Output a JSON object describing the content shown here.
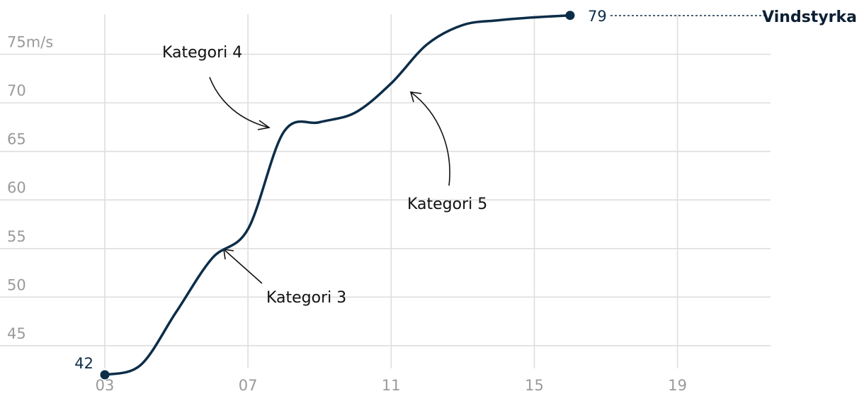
{
  "chart_data": {
    "type": "line",
    "title": "",
    "xlabel": "",
    "ylabel": "",
    "x_ticks": [
      "03",
      "07",
      "11",
      "15",
      "19"
    ],
    "y_ticks": [
      "75m/s",
      "70",
      "65",
      "60",
      "55",
      "50",
      "45"
    ],
    "y_tick_values": [
      75,
      70,
      65,
      60,
      55,
      50,
      45
    ],
    "x_tick_values": [
      3,
      7,
      11,
      15,
      19
    ],
    "xlim": [
      3,
      21.6
    ],
    "ylim": [
      41.2,
      80
    ],
    "grid": true,
    "series": [
      {
        "name": "Vindstyrka",
        "color": "#0c2d48",
        "x": [
          3,
          4,
          5,
          6,
          7,
          8,
          9,
          10,
          11,
          12,
          13,
          14,
          15,
          16
        ],
        "y": [
          42,
          43,
          48.5,
          54,
          57,
          67,
          68,
          69,
          72,
          76,
          78,
          78.5,
          78.8,
          79
        ]
      }
    ],
    "start_label": "42",
    "end_label": "79",
    "annotations": [
      {
        "text": "Kategori 4"
      },
      {
        "text": "Kategori 3"
      },
      {
        "text": "Kategori 5"
      }
    ]
  }
}
